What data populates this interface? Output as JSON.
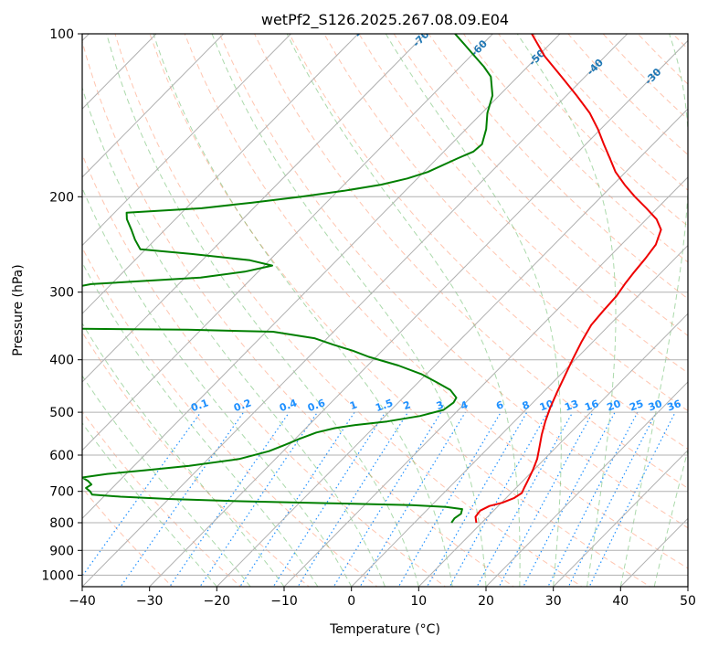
{
  "chart_data": {
    "type": "skew-t",
    "title": "wetPf2_S126.2025.267.08.09.E04",
    "xlabel": "Temperature (°C)",
    "ylabel": "Pressure (hPa)",
    "xlim": [
      -40,
      50
    ],
    "ylim": [
      1050,
      100
    ],
    "y_scale": "log",
    "grid": true,
    "x_ticks": [
      -40,
      -30,
      -20,
      -10,
      0,
      10,
      20,
      30,
      40,
      50
    ],
    "y_ticks": [
      100,
      200,
      300,
      400,
      500,
      600,
      700,
      800,
      900,
      1000
    ],
    "isotherms": [
      -100,
      -90,
      -80,
      -70,
      -60,
      -50,
      -40,
      -30,
      -20,
      -10,
      0,
      10,
      20,
      30,
      40
    ],
    "mixing_ratio_labels": [
      "0.1",
      "0.2",
      "0.4",
      "0.6",
      "1",
      "1.5",
      "2",
      "3",
      "4",
      "6",
      "8",
      "10",
      "13",
      "16",
      "20",
      "25",
      "30",
      "36"
    ],
    "mixing_ratio_values": [
      0.1,
      0.2,
      0.4,
      0.6,
      1,
      1.5,
      2,
      3,
      4,
      6,
      8,
      10,
      13,
      16,
      20,
      25,
      30,
      36
    ],
    "colors": {
      "temperature": "#ee0000",
      "dewpoint": "#007f00",
      "grid": "#b0b0b0",
      "isotherm_label_cold": "#1f77b4",
      "isotherm_label_warm": "#d62728",
      "isotherm_label_zero": "#7f7f7f",
      "mixing_ratio": "#1e90ff",
      "dry_adiabat": "#ff7f50",
      "moist_adiabat": "#2ca02c"
    },
    "series": [
      {
        "name": "",
        "role": "temperature",
        "points": [
          [
            800,
            9.2
          ],
          [
            780,
            8.2
          ],
          [
            760,
            8.0
          ],
          [
            745,
            8.7
          ],
          [
            735,
            10.1
          ],
          [
            720,
            11.2
          ],
          [
            705,
            11.6
          ],
          [
            690,
            11.2
          ],
          [
            670,
            10.7
          ],
          [
            640,
            9.9
          ],
          [
            610,
            8.9
          ],
          [
            580,
            7.5
          ],
          [
            550,
            6.0
          ],
          [
            520,
            4.6
          ],
          [
            490,
            3.3
          ],
          [
            460,
            2.1
          ],
          [
            430,
            0.9
          ],
          [
            400,
            -0.4
          ],
          [
            370,
            -1.7
          ],
          [
            345,
            -2.7
          ],
          [
            325,
            -3.0
          ],
          [
            305,
            -3.2
          ],
          [
            290,
            -3.7
          ],
          [
            275,
            -4.1
          ],
          [
            260,
            -4.4
          ],
          [
            245,
            -4.9
          ],
          [
            230,
            -6.3
          ],
          [
            220,
            -8.5
          ],
          [
            210,
            -11.6
          ],
          [
            200,
            -15.0
          ],
          [
            190,
            -18.3
          ],
          [
            180,
            -21.5
          ],
          [
            170,
            -24.3
          ],
          [
            160,
            -27.3
          ],
          [
            150,
            -30.4
          ],
          [
            140,
            -34.0
          ],
          [
            130,
            -38.5
          ],
          [
            120,
            -43.5
          ],
          [
            110,
            -49.0
          ],
          [
            100,
            -54.2
          ]
        ]
      },
      {
        "name": "",
        "role": "dewpoint",
        "points": [
          [
            800,
            5.5
          ],
          [
            785,
            5.3
          ],
          [
            770,
            5.6
          ],
          [
            755,
            5.1
          ],
          [
            748,
            2.4
          ],
          [
            742,
            -3.0
          ],
          [
            736,
            -16.0
          ],
          [
            730,
            -29.0
          ],
          [
            723,
            -40.0
          ],
          [
            716,
            -47.5
          ],
          [
            710,
            -52.0
          ],
          [
            700,
            -52.8
          ],
          [
            690,
            -53.9
          ],
          [
            680,
            -53.6
          ],
          [
            670,
            -54.6
          ],
          [
            660,
            -56.0
          ],
          [
            650,
            -52.8
          ],
          [
            640,
            -47.7
          ],
          [
            628,
            -41.8
          ],
          [
            610,
            -35.4
          ],
          [
            590,
            -32.1
          ],
          [
            575,
            -30.7
          ],
          [
            560,
            -29.4
          ],
          [
            545,
            -27.8
          ],
          [
            535,
            -25.7
          ],
          [
            528,
            -23.1
          ],
          [
            520,
            -18.9
          ],
          [
            508,
            -14.8
          ],
          [
            495,
            -12.2
          ],
          [
            480,
            -11.8
          ],
          [
            470,
            -12.1
          ],
          [
            455,
            -14.1
          ],
          [
            440,
            -17.3
          ],
          [
            425,
            -20.8
          ],
          [
            410,
            -25.4
          ],
          [
            395,
            -31.1
          ],
          [
            385,
            -34.3
          ],
          [
            375,
            -38.2
          ],
          [
            365,
            -41.9
          ],
          [
            355,
            -49.0
          ],
          [
            352,
            -62.0
          ],
          [
            350,
            -84.0
          ],
          [
            340,
            -86.0
          ],
          [
            320,
            -87.5
          ],
          [
            300,
            -88.2
          ],
          [
            290,
            -83.0
          ],
          [
            282,
            -67.7
          ],
          [
            275,
            -62.0
          ],
          [
            268,
            -58.8
          ],
          [
            262,
            -62.9
          ],
          [
            255,
            -72.5
          ],
          [
            250,
            -80.8
          ],
          [
            240,
            -83.0
          ],
          [
            230,
            -85.0
          ],
          [
            220,
            -87.2
          ],
          [
            214,
            -88.2
          ],
          [
            210,
            -77.7
          ],
          [
            205,
            -71.0
          ],
          [
            200,
            -64.6
          ],
          [
            195,
            -59.1
          ],
          [
            190,
            -54.5
          ],
          [
            185,
            -51.5
          ],
          [
            180,
            -49.4
          ],
          [
            170,
            -47.0
          ],
          [
            165,
            -45.6
          ],
          [
            160,
            -45.4
          ],
          [
            150,
            -47.0
          ],
          [
            140,
            -49.2
          ],
          [
            130,
            -51.0
          ],
          [
            120,
            -54.0
          ],
          [
            115,
            -56.5
          ],
          [
            110,
            -59.4
          ],
          [
            105,
            -62.4
          ],
          [
            100,
            -65.6
          ]
        ]
      }
    ]
  }
}
